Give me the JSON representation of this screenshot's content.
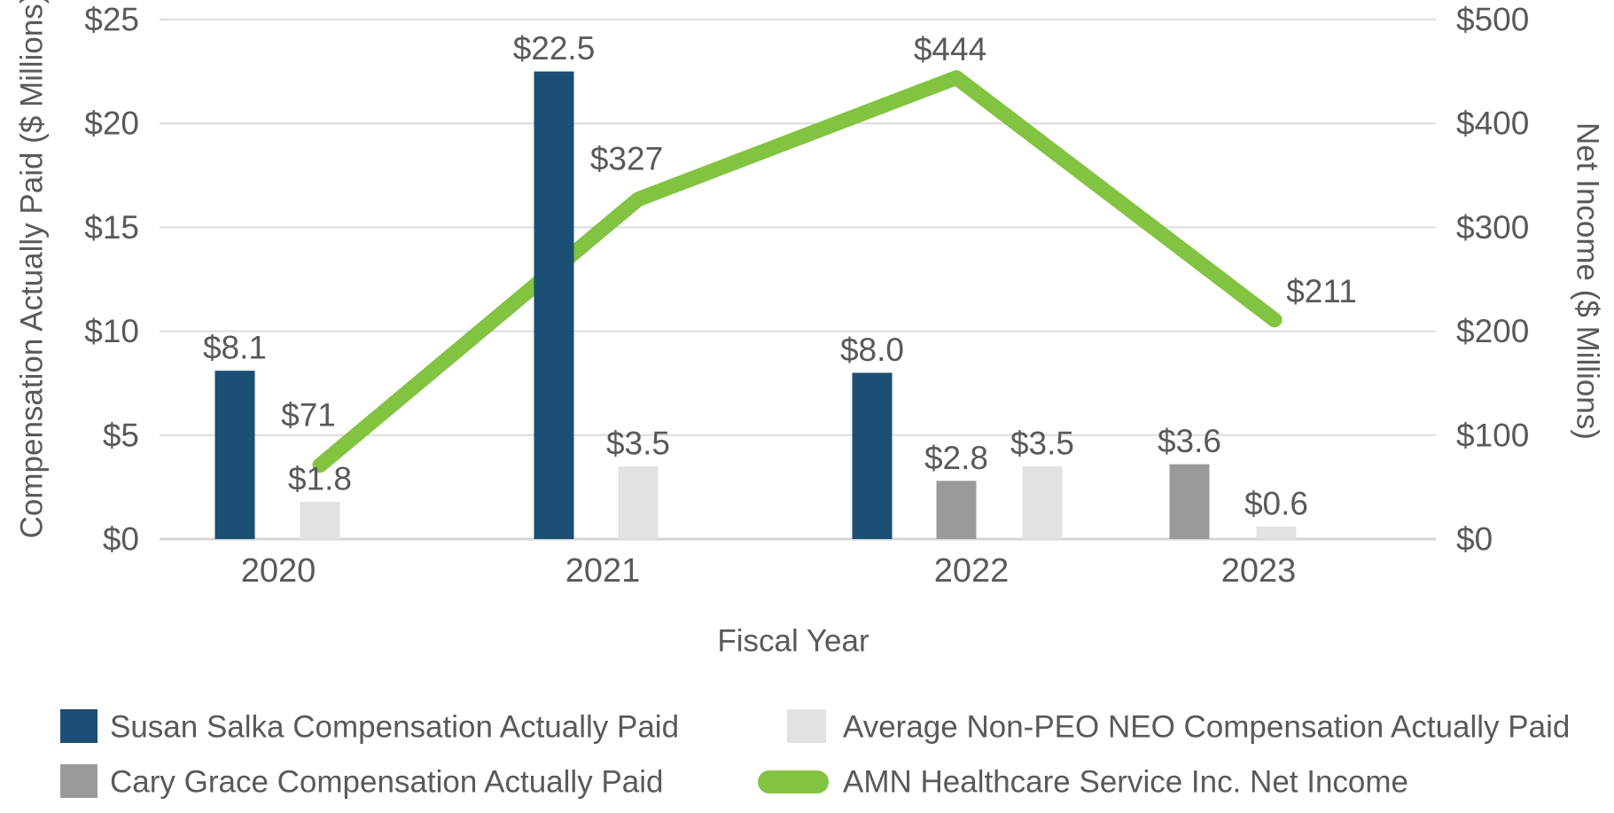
{
  "page": {
    "background": "#FFFFFF",
    "text_color": "#595959",
    "gridline_color": "#DCDCDC"
  },
  "chart_data": {
    "type": "combo-bar-line",
    "categories": [
      "2020",
      "2021",
      "2022",
      "2023"
    ],
    "bar_series": [
      {
        "name": "Susan Salka Compensation Actually Paid",
        "color": "#1B4F73",
        "axis": "left",
        "values": [
          8.1,
          22.5,
          8.0,
          null
        ],
        "labels": [
          "$8.1",
          "$22.5",
          "$8.0",
          null
        ]
      },
      {
        "name": "Cary Grace Compensation Actually Paid",
        "color": "#9A9A9A",
        "axis": "left",
        "values": [
          null,
          null,
          2.8,
          3.6
        ],
        "labels": [
          null,
          null,
          "$2.8",
          "$3.6"
        ]
      },
      {
        "name": "Average Non-PEO NEO Compensation Actually Paid",
        "color": "#E1E2E4",
        "axis": "left",
        "values": [
          1.8,
          3.5,
          3.5,
          0.6
        ],
        "labels": [
          "$1.8",
          "$3.5",
          "$3.5",
          "$0.6"
        ]
      }
    ],
    "line_series": {
      "name": "AMN Healthcare Service Inc. Net Income",
      "color": "#82C341",
      "axis": "right",
      "values": [
        71,
        327,
        444,
        211
      ],
      "labels": [
        "$71",
        "$327",
        "$444",
        "$211"
      ]
    },
    "left_axis": {
      "title": "Compensation Actually Paid ($ Millions)",
      "ticks": [
        "$0",
        "$5",
        "$10",
        "$15",
        "$20",
        "$25"
      ],
      "min": 0,
      "max": 25
    },
    "right_axis": {
      "title": "Net Income ($ Millions)",
      "ticks": [
        "$0",
        "$100",
        "$200",
        "$300",
        "$400",
        "$500"
      ],
      "min": 0,
      "max": 500
    },
    "x_axis": {
      "title": "Fiscal Year"
    },
    "grid": true,
    "legend_position": "bottom",
    "legend": [
      {
        "label": "Susan Salka Compensation Actually Paid",
        "swatch": "square",
        "color": "#1B4F73"
      },
      {
        "label": "Average Non-PEO NEO Compensation Actually Paid",
        "swatch": "square",
        "color": "#E1E2E4"
      },
      {
        "label": "Cary Grace Compensation Actually Paid",
        "swatch": "square",
        "color": "#9A9A9A"
      },
      {
        "label": "AMN Healthcare Service Inc. Net Income",
        "swatch": "line",
        "color": "#82C341"
      }
    ]
  }
}
